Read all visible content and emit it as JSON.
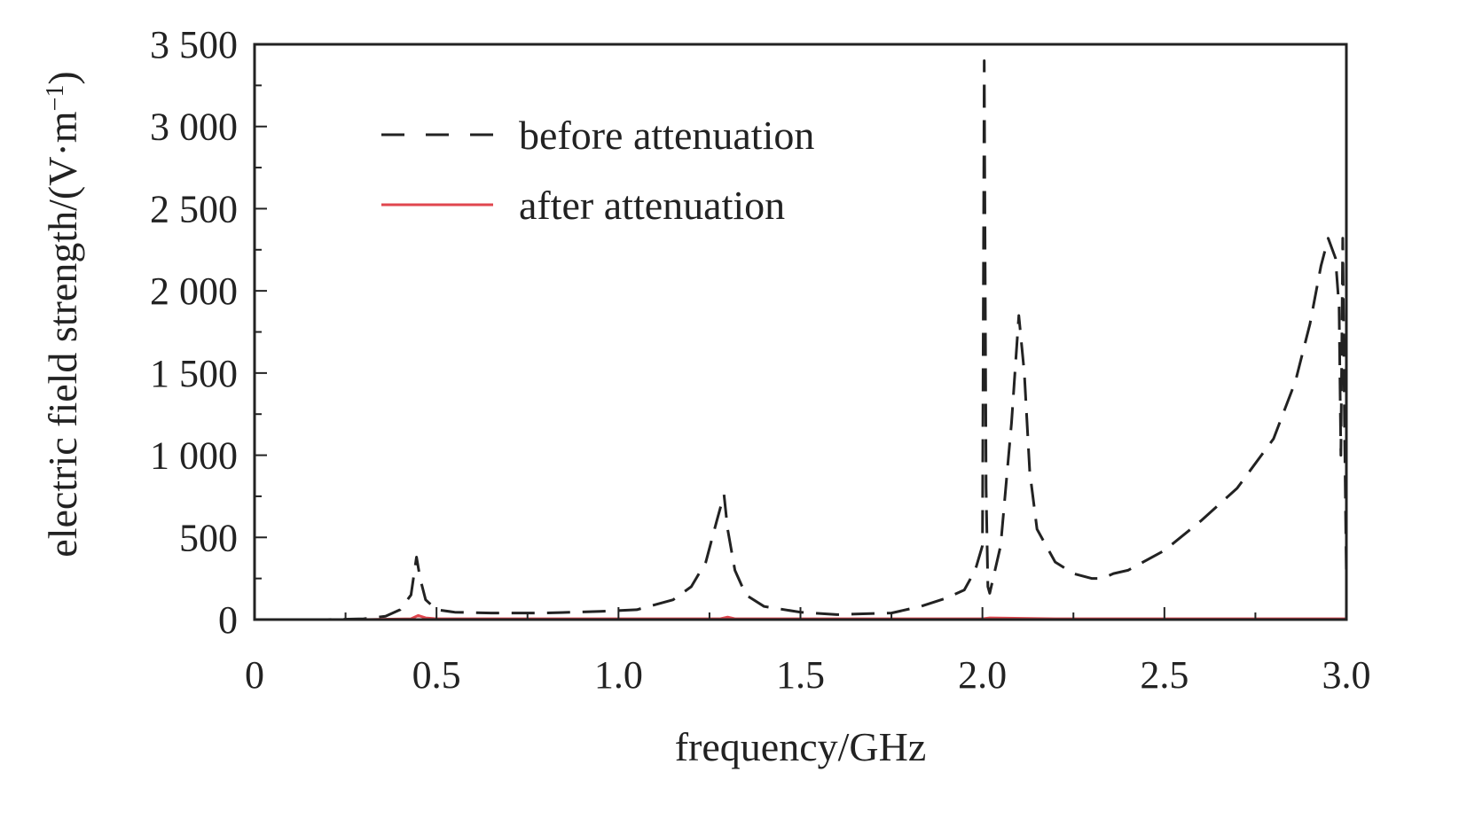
{
  "chart_data": {
    "type": "line",
    "xlabel": "frequency/GHz",
    "ylabel": "electric field strength/(V·m",
    "ylabel_superscript": "−1",
    "ylabel_close": ")",
    "xlim": [
      0,
      3.0
    ],
    "ylim": [
      0,
      3500
    ],
    "x_ticks": [
      0,
      0.5,
      1.0,
      1.5,
      2.0,
      2.5,
      3.0
    ],
    "x_tick_labels": [
      "0",
      "0.5",
      "1.0",
      "1.5",
      "2.0",
      "2.5",
      "3.0"
    ],
    "y_ticks": [
      0,
      500,
      1000,
      1500,
      2000,
      2500,
      3000,
      3500
    ],
    "y_tick_labels": [
      "0",
      "500",
      "1 000",
      "1 500",
      "2 000",
      "2 500",
      "3 000",
      "3 500"
    ],
    "grid": false,
    "legend_position": "top-left",
    "series": [
      {
        "name": "before attenuation",
        "color": "#222222",
        "style": "dashed",
        "x": [
          0.05,
          0.2,
          0.3,
          0.36,
          0.4,
          0.43,
          0.445,
          0.455,
          0.47,
          0.5,
          0.55,
          0.65,
          0.8,
          0.95,
          1.05,
          1.15,
          1.2,
          1.24,
          1.27,
          1.29,
          1.3,
          1.32,
          1.35,
          1.4,
          1.5,
          1.6,
          1.75,
          1.83,
          1.9,
          1.95,
          1.98,
          2.0,
          2.005,
          2.01,
          2.015,
          2.02,
          2.05,
          2.08,
          2.1,
          2.115,
          2.13,
          2.15,
          2.2,
          2.25,
          2.3,
          2.33,
          2.36,
          2.4,
          2.5,
          2.6,
          2.7,
          2.8,
          2.86,
          2.9,
          2.93,
          2.95,
          2.97,
          2.98,
          2.985,
          2.99,
          2.995,
          3.0
        ],
        "y": [
          0,
          0,
          5,
          20,
          60,
          150,
          380,
          250,
          120,
          60,
          45,
          40,
          40,
          50,
          60,
          120,
          200,
          350,
          600,
          760,
          550,
          300,
          150,
          80,
          45,
          30,
          40,
          80,
          130,
          180,
          300,
          450,
          3400,
          800,
          200,
          160,
          450,
          1200,
          1850,
          1500,
          900,
          550,
          350,
          280,
          250,
          250,
          280,
          300,
          420,
          600,
          800,
          1100,
          1450,
          1800,
          2150,
          2320,
          2200,
          1900,
          1000,
          2320,
          1200,
          250
        ]
      },
      {
        "name": "after attenuation",
        "color": "#e0464e",
        "style": "solid",
        "x": [
          0.05,
          0.3,
          0.43,
          0.45,
          0.47,
          0.5,
          1.0,
          1.28,
          1.3,
          1.32,
          1.5,
          2.0,
          2.02,
          2.2,
          2.5,
          3.0
        ],
        "y": [
          0,
          0,
          5,
          25,
          10,
          5,
          5,
          5,
          15,
          5,
          5,
          5,
          10,
          5,
          5,
          5
        ]
      }
    ]
  }
}
